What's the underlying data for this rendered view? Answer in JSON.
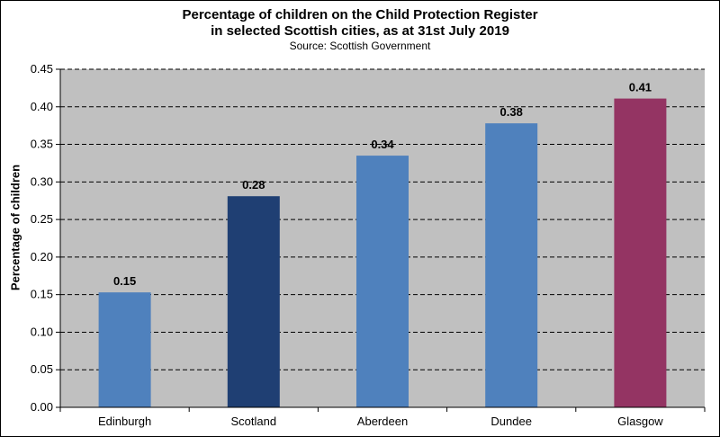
{
  "chart_data": {
    "type": "bar",
    "title_lines": [
      "Percentage of children on the Child Protection Register",
      "in selected Scottish cities, as at 31st July 2019"
    ],
    "subtitle": "Source: Scottish Government",
    "xlabel": "",
    "ylabel": "Percentage of children",
    "categories": [
      "Edinburgh",
      "Scotland",
      "Aberdeen",
      "Dundee",
      "Glasgow"
    ],
    "values": [
      0.153,
      0.281,
      0.335,
      0.378,
      0.411
    ],
    "data_labels": [
      "0.15",
      "0.28",
      "0.34",
      "0.38",
      "0.41"
    ],
    "colors": [
      "#4F81BD",
      "#1F3F73",
      "#4F81BD",
      "#4F81BD",
      "#943463"
    ],
    "ylim": [
      0,
      0.45
    ],
    "yticks": [
      0.0,
      0.05,
      0.1,
      0.15,
      0.2,
      0.25,
      0.3,
      0.35,
      0.4,
      0.45
    ],
    "ytick_labels": [
      "0.00",
      "0.05",
      "0.10",
      "0.15",
      "0.20",
      "0.25",
      "0.30",
      "0.35",
      "0.40",
      "0.45"
    ],
    "grid": true,
    "plot_background": "#C0C0C0"
  }
}
